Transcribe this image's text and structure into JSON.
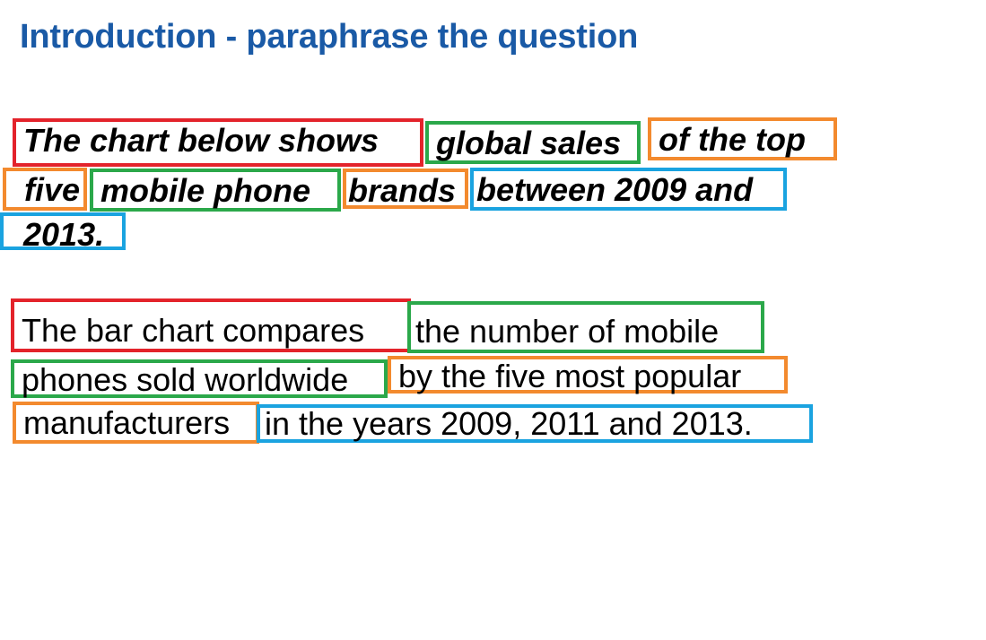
{
  "title": "Introduction - paraphrase the question",
  "colors": {
    "title": "#1a5aa6",
    "red": "#e3232b",
    "green": "#2ba84a",
    "orange": "#f38a2e",
    "blue": "#1aa3e0"
  },
  "question": {
    "segments": [
      {
        "text": "The chart below shows",
        "color": "red"
      },
      {
        "text": "global sales",
        "color": "green"
      },
      {
        "text": "of the top",
        "color": "orange"
      },
      {
        "text": "five",
        "color": "orange"
      },
      {
        "text": "mobile phone",
        "color": "green"
      },
      {
        "text": "brands",
        "color": "orange"
      },
      {
        "text": "between 2009 and",
        "color": "blue"
      },
      {
        "text": "2013.",
        "color": "blue"
      }
    ]
  },
  "answer": {
    "segments": [
      {
        "text": "The bar chart compares",
        "color": "red"
      },
      {
        "text": "the number of mobile",
        "color": "green"
      },
      {
        "text": "phones sold worldwide",
        "color": "green"
      },
      {
        "text": "by the five most popular",
        "color": "orange"
      },
      {
        "text": "manufacturers",
        "color": "orange"
      },
      {
        "text": "in the years 2009, 2011 and 2013.",
        "color": "blue"
      }
    ]
  }
}
